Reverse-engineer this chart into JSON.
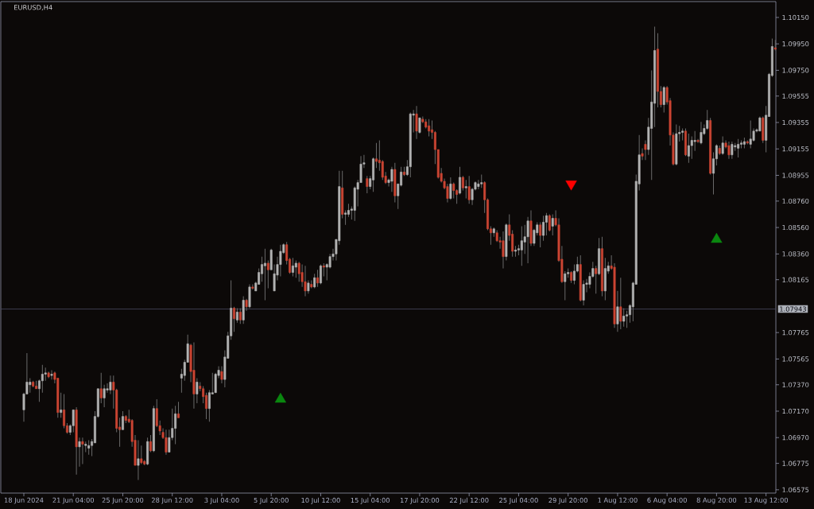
{
  "chart_data": {
    "type": "candlestick",
    "title": "EURUSD,H4",
    "categories": [
      "18 Jun 2024",
      null,
      null,
      null,
      null,
      null,
      null,
      null,
      null,
      null,
      null,
      null,
      null,
      null,
      null,
      null,
      "21 Jun 04:00",
      null,
      null,
      null,
      null,
      null,
      null,
      null,
      null,
      null,
      null,
      null,
      null,
      null,
      null,
      null,
      "25 Jun 20:00",
      null,
      null,
      null,
      null,
      null,
      null,
      null,
      null,
      null,
      null,
      null,
      null,
      null,
      null,
      null,
      "28 Jun 12:00",
      null,
      null,
      null,
      null,
      null,
      null,
      null,
      null,
      null,
      null,
      null,
      null,
      null,
      null,
      null,
      "3 Jul 04:00",
      null,
      null,
      null,
      null,
      null,
      null,
      null,
      null,
      null,
      null,
      null,
      null,
      null,
      null,
      null,
      "5 Jul 20:00",
      null,
      null,
      null,
      null,
      null,
      null,
      null,
      null,
      null,
      null,
      null,
      null,
      null,
      null,
      null,
      "10 Jul 12:00",
      null,
      null,
      null,
      null,
      null,
      null,
      null,
      null,
      null,
      null,
      null,
      null,
      null,
      null,
      null,
      "15 Jul 04:00",
      null,
      null,
      null,
      null,
      null,
      null,
      null,
      null,
      null,
      null,
      null,
      null,
      null,
      null,
      null,
      "17 Jul 20:00",
      null,
      null,
      null,
      null,
      null,
      null,
      null,
      null,
      null,
      null,
      null,
      null,
      null,
      null,
      null,
      "22 Jul 12:00",
      null,
      null,
      null,
      null,
      null,
      null,
      null,
      null,
      null,
      null,
      null,
      null,
      null,
      null,
      null,
      "25 Jul 04:00",
      null,
      null,
      null,
      null,
      null,
      null,
      null,
      null,
      null,
      null,
      null,
      null,
      null,
      null,
      null,
      "29 Jul 20:00",
      null,
      null,
      null,
      null,
      null,
      null,
      null,
      null,
      null,
      null,
      null,
      null,
      null,
      null,
      null,
      "1 Aug 12:00",
      null,
      null,
      null,
      null,
      null,
      null,
      null,
      null,
      null,
      null,
      null,
      null,
      null,
      null,
      null,
      "6 Aug 04:00",
      null,
      null,
      null,
      null,
      null,
      null,
      null,
      null,
      null,
      null,
      null,
      null,
      null,
      null,
      null,
      "8 Aug 20:00",
      null,
      null,
      null,
      null,
      null,
      null,
      null,
      null,
      null,
      null,
      null,
      null,
      null,
      null,
      null,
      "13 Aug 12:00",
      null,
      null,
      null
    ],
    "ohlc": [
      [
        1.0718,
        1.0731,
        1.0709,
        1.073
      ],
      [
        1.073,
        1.0761,
        1.073,
        1.0739
      ],
      [
        1.0737,
        1.0742,
        1.0731,
        1.0739
      ],
      [
        1.0739,
        1.074,
        1.0735,
        1.0736
      ],
      [
        1.0736,
        1.074,
        1.0734,
        1.0734
      ],
      [
        1.0734,
        1.0741,
        1.0724,
        1.074
      ],
      [
        1.074,
        1.0752,
        1.0731,
        1.0745
      ],
      [
        1.0745,
        1.075,
        1.074,
        1.0746
      ],
      [
        1.0746,
        1.0747,
        1.0742,
        1.0743
      ],
      [
        1.0744,
        1.0748,
        1.0741,
        1.0745
      ],
      [
        1.0746,
        1.0747,
        1.0738,
        1.0741
      ],
      [
        1.0742,
        1.0742,
        1.0712,
        1.0716
      ],
      [
        1.0716,
        1.0731,
        1.0712,
        1.0718
      ],
      [
        1.0718,
        1.073,
        1.0704,
        1.0706
      ],
      [
        1.0706,
        1.0708,
        1.07,
        1.0701
      ],
      [
        1.0701,
        1.0707,
        1.0699,
        1.0706
      ],
      [
        1.0706,
        1.0718,
        1.0701,
        1.0718
      ],
      [
        1.0718,
        1.072,
        1.0669,
        1.069
      ],
      [
        1.069,
        1.0697,
        1.0675,
        1.0694
      ],
      [
        1.0694,
        1.0697,
        1.0677,
        1.0692
      ],
      [
        1.0691,
        1.0694,
        1.0686,
        1.0692
      ],
      [
        1.0689,
        1.0695,
        1.0684,
        1.0691
      ],
      [
        1.0691,
        1.0696,
        1.0683,
        1.0694
      ],
      [
        1.0693,
        1.0717,
        1.0693,
        1.0713
      ],
      [
        1.0713,
        1.0734,
        1.0712,
        1.0734
      ],
      [
        1.0734,
        1.0746,
        1.0723,
        1.0727
      ],
      [
        1.0727,
        1.0737,
        1.072,
        1.0734
      ],
      [
        1.0733,
        1.0738,
        1.0731,
        1.0734
      ],
      [
        1.0733,
        1.0744,
        1.073,
        1.0739
      ],
      [
        1.0739,
        1.0744,
        1.0719,
        1.0733
      ],
      [
        1.0733,
        1.0734,
        1.0701,
        1.0704
      ],
      [
        1.0705,
        1.0712,
        1.069,
        1.0703
      ],
      [
        1.0703,
        1.0717,
        1.0703,
        1.0713
      ],
      [
        1.0713,
        1.0714,
        1.0708,
        1.071
      ],
      [
        1.0711,
        1.0718,
        1.0708,
        1.0709
      ],
      [
        1.071,
        1.0711,
        1.069,
        1.0694
      ],
      [
        1.0695,
        1.0699,
        1.0676,
        1.0676
      ],
      [
        1.0676,
        1.0695,
        1.0665,
        1.0681
      ],
      [
        1.0681,
        1.0691,
        1.0677,
        1.0678
      ],
      [
        1.0679,
        1.068,
        1.0676,
        1.0677
      ],
      [
        1.0677,
        1.0697,
        1.0676,
        1.0694
      ],
      [
        1.0694,
        1.0699,
        1.0686,
        1.0687
      ],
      [
        1.0687,
        1.0721,
        1.0686,
        1.0719
      ],
      [
        1.0719,
        1.0726,
        1.0705,
        1.0706
      ],
      [
        1.0706,
        1.071,
        1.0699,
        1.0702
      ],
      [
        1.0701,
        1.0704,
        1.0696,
        1.0697
      ],
      [
        1.0697,
        1.0703,
        1.0684,
        1.0686
      ],
      [
        1.0686,
        1.0703,
        1.0686,
        1.0697
      ],
      [
        1.0697,
        1.0719,
        1.0695,
        1.0704
      ],
      [
        1.0704,
        1.0721,
        1.0692,
        1.0715
      ],
      [
        1.0715,
        1.0724,
        1.0712,
        1.0712
      ],
      [
        1.0742,
        1.0749,
        1.0731,
        1.0745
      ],
      [
        1.0744,
        1.0756,
        1.074,
        1.0754
      ],
      [
        1.0754,
        1.0775,
        1.0754,
        1.0768
      ],
      [
        1.0767,
        1.0768,
        1.0739,
        1.0747
      ],
      [
        1.0748,
        1.0769,
        1.0719,
        1.073
      ],
      [
        1.073,
        1.0742,
        1.0723,
        1.0739
      ],
      [
        1.0736,
        1.0739,
        1.0732,
        1.0734
      ],
      [
        1.0734,
        1.0736,
        1.0723,
        1.0728
      ],
      [
        1.0729,
        1.0731,
        1.0711,
        1.0719
      ],
      [
        1.0719,
        1.0733,
        1.0709,
        1.0731
      ],
      [
        1.073,
        1.0746,
        1.073,
        1.0731
      ],
      [
        1.0731,
        1.0746,
        1.0731,
        1.0745
      ],
      [
        1.0744,
        1.0751,
        1.0742,
        1.0748
      ],
      [
        1.0747,
        1.0751,
        1.0738,
        1.0741
      ],
      [
        1.0741,
        1.0763,
        1.0735,
        1.0758
      ],
      [
        1.0757,
        1.0777,
        1.0757,
        1.0774
      ],
      [
        1.0774,
        1.0816,
        1.0771,
        1.0795
      ],
      [
        1.0795,
        1.0796,
        1.0777,
        1.0787
      ],
      [
        1.0786,
        1.0795,
        1.0784,
        1.0792
      ],
      [
        1.0792,
        1.0795,
        1.0783,
        1.0786
      ],
      [
        1.0786,
        1.0804,
        1.0783,
        1.0801
      ],
      [
        1.0801,
        1.0802,
        1.0793,
        1.0796
      ],
      [
        1.0796,
        1.0813,
        1.0795,
        1.0811
      ],
      [
        1.0811,
        1.0813,
        1.0809,
        1.081
      ],
      [
        1.0808,
        1.0815,
        1.0808,
        1.0814
      ],
      [
        1.0813,
        1.0825,
        1.0813,
        1.0822
      ],
      [
        1.0821,
        1.0834,
        1.0815,
        1.0828
      ],
      [
        1.0827,
        1.084,
        1.0801,
        1.0829
      ],
      [
        1.0829,
        1.0831,
        1.081,
        1.0824
      ],
      [
        1.0824,
        1.084,
        1.0824,
        1.0839
      ],
      [
        1.0808,
        1.0828,
        1.0808,
        1.0821
      ],
      [
        1.082,
        1.0834,
        1.0816,
        1.0828
      ],
      [
        1.0828,
        1.0843,
        1.0819,
        1.0838
      ],
      [
        1.0837,
        1.0844,
        1.0836,
        1.0843
      ],
      [
        1.0843,
        1.0845,
        1.0828,
        1.0831
      ],
      [
        1.0832,
        1.0833,
        1.0821,
        1.0822
      ],
      [
        1.0822,
        1.0833,
        1.0819,
        1.0827
      ],
      [
        1.0826,
        1.0831,
        1.0818,
        1.0829
      ],
      [
        1.0829,
        1.083,
        1.0815,
        1.0821
      ],
      [
        1.0822,
        1.0828,
        1.0811,
        1.0815
      ],
      [
        1.0815,
        1.0827,
        1.0804,
        1.0808
      ],
      [
        1.0808,
        1.0816,
        1.0806,
        1.0814
      ],
      [
        1.0813,
        1.0816,
        1.081,
        1.0811
      ],
      [
        1.0811,
        1.0821,
        1.081,
        1.0818
      ],
      [
        1.0818,
        1.0824,
        1.0811,
        1.0814
      ],
      [
        1.0814,
        1.0828,
        1.0813,
        1.0827
      ],
      [
        1.0827,
        1.0829,
        1.0819,
        1.0826
      ],
      [
        1.0826,
        1.0829,
        1.0816,
        1.0828
      ],
      [
        1.0826,
        1.0836,
        1.0825,
        1.0834
      ],
      [
        1.0834,
        1.084,
        1.0831,
        1.0836
      ],
      [
        1.0836,
        1.0847,
        1.0831,
        1.0847
      ],
      [
        1.0846,
        1.0899,
        1.0843,
        1.0887
      ],
      [
        1.0886,
        1.0899,
        1.0863,
        1.0866
      ],
      [
        1.0866,
        1.0869,
        1.0858,
        1.0867
      ],
      [
        1.0866,
        1.0874,
        1.0864,
        1.0869
      ],
      [
        1.0869,
        1.0872,
        1.0862,
        1.087
      ],
      [
        1.0869,
        1.0887,
        1.0861,
        1.0886
      ],
      [
        1.0885,
        1.0892,
        1.0872,
        1.089
      ],
      [
        1.089,
        1.091,
        1.089,
        1.0904
      ],
      [
        1.0904,
        1.0911,
        1.0901,
        1.0905
      ],
      [
        1.0893,
        1.0895,
        1.0882,
        1.0887
      ],
      [
        1.0887,
        1.0895,
        1.0885,
        1.0893
      ],
      [
        1.0892,
        1.0909,
        1.0883,
        1.0908
      ],
      [
        1.0908,
        1.092,
        1.0901,
        1.0906
      ],
      [
        1.0907,
        1.0922,
        1.0899,
        1.0905
      ],
      [
        1.0906,
        1.0907,
        1.0892,
        1.0894
      ],
      [
        1.0895,
        1.0898,
        1.0889,
        1.089
      ],
      [
        1.089,
        1.0893,
        1.0887,
        1.0892
      ],
      [
        1.0891,
        1.0902,
        1.0883,
        1.09
      ],
      [
        1.09,
        1.0905,
        1.0875,
        1.088
      ],
      [
        1.088,
        1.0889,
        1.087,
        1.0889
      ],
      [
        1.0888,
        1.0902,
        1.0887,
        1.0898
      ],
      [
        1.0898,
        1.0902,
        1.0895,
        1.0896
      ],
      [
        1.0896,
        1.0907,
        1.0895,
        1.0902
      ],
      [
        1.0902,
        1.0943,
        1.0894,
        1.0942
      ],
      [
        1.0941,
        1.0945,
        1.0928,
        1.0942
      ],
      [
        1.0942,
        1.0948,
        1.0923,
        1.0929
      ],
      [
        1.0928,
        1.0939,
        1.0927,
        1.0939
      ],
      [
        1.0938,
        1.094,
        1.0935,
        1.0936
      ],
      [
        1.0936,
        1.0938,
        1.0931,
        1.0932
      ],
      [
        1.0933,
        1.0938,
        1.0925,
        1.0929
      ],
      [
        1.093,
        1.0937,
        1.0923,
        1.0928
      ],
      [
        1.0928,
        1.0929,
        1.0904,
        1.0915
      ],
      [
        1.0915,
        1.0915,
        1.0893,
        1.0894
      ],
      [
        1.0897,
        1.0901,
        1.089,
        1.0891
      ],
      [
        1.0891,
        1.0893,
        1.0885,
        1.0886
      ],
      [
        1.0887,
        1.0889,
        1.0875,
        1.0878
      ],
      [
        1.0878,
        1.0894,
        1.0877,
        1.0889
      ],
      [
        1.0889,
        1.089,
        1.0878,
        1.0884
      ],
      [
        1.0884,
        1.0885,
        1.0874,
        1.0881
      ],
      [
        1.0882,
        1.0902,
        1.0881,
        1.0894
      ],
      [
        1.0894,
        1.0895,
        1.0884,
        1.0886
      ],
      [
        1.0886,
        1.0892,
        1.0878,
        1.0887
      ],
      [
        1.0887,
        1.0895,
        1.0874,
        1.0877
      ],
      [
        1.0877,
        1.0886,
        1.0873,
        1.0885
      ],
      [
        1.0885,
        1.0891,
        1.0884,
        1.089
      ],
      [
        1.0887,
        1.0892,
        1.0885,
        1.0889
      ],
      [
        1.0889,
        1.0896,
        1.0886,
        1.089
      ],
      [
        1.089,
        1.0891,
        1.0867,
        1.0877
      ],
      [
        1.0877,
        1.0878,
        1.0854,
        1.0855
      ],
      [
        1.0855,
        1.0857,
        1.0843,
        1.0852
      ],
      [
        1.0852,
        1.0856,
        1.0849,
        1.0855
      ],
      [
        1.0852,
        1.0854,
        1.0845,
        1.0846
      ],
      [
        1.0846,
        1.0849,
        1.084,
        1.0845
      ],
      [
        1.0846,
        1.0853,
        1.0825,
        1.0834
      ],
      [
        1.0834,
        1.0859,
        1.0831,
        1.0858
      ],
      [
        1.0858,
        1.0866,
        1.0846,
        1.085
      ],
      [
        1.0851,
        1.0854,
        1.0834,
        1.0838
      ],
      [
        1.0838,
        1.0842,
        1.0834,
        1.0839
      ],
      [
        1.0839,
        1.0843,
        1.0835,
        1.084
      ],
      [
        1.0839,
        1.0857,
        1.0827,
        1.0846
      ],
      [
        1.0845,
        1.0858,
        1.0836,
        1.0849
      ],
      [
        1.0849,
        1.0864,
        1.0829,
        1.0861
      ],
      [
        1.0861,
        1.0869,
        1.0842,
        1.0844
      ],
      [
        1.0844,
        1.0855,
        1.0842,
        1.0854
      ],
      [
        1.0852,
        1.086,
        1.085,
        1.0858
      ],
      [
        1.0858,
        1.086,
        1.0841,
        1.085
      ],
      [
        1.085,
        1.0865,
        1.0846,
        1.086
      ],
      [
        1.086,
        1.0867,
        1.085,
        1.0865
      ],
      [
        1.0865,
        1.0866,
        1.0853,
        1.0854
      ],
      [
        1.0857,
        1.0866,
        1.085,
        1.0863
      ],
      [
        1.0863,
        1.0869,
        1.0857,
        1.0858
      ],
      [
        1.0858,
        1.0863,
        1.083,
        1.0831
      ],
      [
        1.0832,
        1.0842,
        1.0814,
        1.0815
      ],
      [
        1.0815,
        1.0823,
        1.0801,
        1.0821
      ],
      [
        1.0821,
        1.0825,
        1.0818,
        1.0822
      ],
      [
        1.0822,
        1.0823,
        1.0814,
        1.0816
      ],
      [
        1.0816,
        1.0828,
        1.0813,
        1.0823
      ],
      [
        1.0823,
        1.0834,
        1.0822,
        1.0828
      ],
      [
        1.0828,
        1.0835,
        1.08,
        1.0801
      ],
      [
        1.0801,
        1.0816,
        1.0797,
        1.0813
      ],
      [
        1.0813,
        1.0817,
        1.0807,
        1.0814
      ],
      [
        1.0813,
        1.0822,
        1.081,
        1.0819
      ],
      [
        1.0819,
        1.083,
        1.0818,
        1.0825
      ],
      [
        1.0825,
        1.0827,
        1.0806,
        1.0821
      ],
      [
        1.0821,
        1.0848,
        1.082,
        1.084
      ],
      [
        1.084,
        1.0849,
        1.0804,
        1.0808
      ],
      [
        1.0808,
        1.0833,
        1.0801,
        1.0825
      ],
      [
        1.0823,
        1.083,
        1.0821,
        1.0827
      ],
      [
        1.0827,
        1.0835,
        1.0824,
        1.0825
      ],
      [
        1.0826,
        1.0829,
        1.078,
        1.0783
      ],
      [
        1.0783,
        1.0808,
        1.0777,
        1.0796
      ],
      [
        1.0796,
        1.0818,
        1.0779,
        1.0785
      ],
      [
        1.0785,
        1.0795,
        1.0781,
        1.0789
      ],
      [
        1.0789,
        1.0793,
        1.078,
        1.079
      ],
      [
        1.079,
        1.0798,
        1.0784,
        1.0797
      ],
      [
        1.0796,
        1.0815,
        1.0785,
        1.0814
      ],
      [
        1.0813,
        1.0896,
        1.0813,
        1.0891
      ],
      [
        1.0889,
        1.0926,
        1.0884,
        1.0911
      ],
      [
        1.0912,
        1.0916,
        1.0907,
        1.091
      ],
      [
        1.0919,
        1.0922,
        1.0907,
        1.0915
      ],
      [
        1.0915,
        1.0939,
        1.0911,
        1.0932
      ],
      [
        1.0931,
        1.0975,
        1.0892,
        1.0951
      ],
      [
        1.095,
        1.1008,
        1.0932,
        1.099
      ],
      [
        1.0991,
        1.1003,
        1.0947,
        1.0959
      ],
      [
        1.0959,
        1.0963,
        1.0947,
        1.0949
      ],
      [
        1.0949,
        1.0963,
        1.0943,
        1.0962
      ],
      [
        1.0962,
        1.0963,
        1.0949,
        1.0951
      ],
      [
        1.0952,
        1.0954,
        1.0918,
        1.0926
      ],
      [
        1.0926,
        1.0928,
        1.0903,
        1.0904
      ],
      [
        1.0904,
        1.0934,
        1.0903,
        1.0927
      ],
      [
        1.0927,
        1.0933,
        1.0921,
        1.0928
      ],
      [
        1.0928,
        1.0931,
        1.0922,
        1.0929
      ],
      [
        1.0929,
        1.0931,
        1.091,
        1.0911
      ],
      [
        1.091,
        1.0927,
        1.0905,
        1.0918
      ],
      [
        1.0918,
        1.0925,
        1.0908,
        1.0922
      ],
      [
        1.0921,
        1.0929,
        1.0914,
        1.0922
      ],
      [
        1.0922,
        1.0923,
        1.092,
        1.0921
      ],
      [
        1.092,
        1.0936,
        1.0919,
        1.0928
      ],
      [
        1.0927,
        1.0934,
        1.0926,
        1.0931
      ],
      [
        1.0931,
        1.0945,
        1.093,
        1.0937
      ],
      [
        1.0937,
        1.0939,
        1.0896,
        1.0897
      ],
      [
        1.0897,
        1.0913,
        1.0881,
        1.0908
      ],
      [
        1.0908,
        1.0919,
        1.0903,
        1.0918
      ],
      [
        1.0916,
        1.0918,
        1.0911,
        1.0912
      ],
      [
        1.0912,
        1.0925,
        1.0911,
        1.092
      ],
      [
        1.092,
        1.0922,
        1.0916,
        1.0917
      ],
      [
        1.0918,
        1.0921,
        1.0908,
        1.0911
      ],
      [
        1.0911,
        1.0921,
        1.0908,
        1.0919
      ],
      [
        1.0917,
        1.092,
        1.0914,
        1.0918
      ],
      [
        1.0916,
        1.0923,
        1.0909,
        1.0919
      ],
      [
        1.0919,
        1.0922,
        1.0916,
        1.092
      ],
      [
        1.0919,
        1.0924,
        1.0916,
        1.0921
      ],
      [
        1.0921,
        1.0922,
        1.0919,
        1.092
      ],
      [
        1.0919,
        1.0937,
        1.0916,
        1.0923
      ],
      [
        1.0922,
        1.0931,
        1.0921,
        1.0929
      ],
      [
        1.0929,
        1.0931,
        1.0928,
        1.093
      ],
      [
        1.0929,
        1.094,
        1.0929,
        1.0939
      ],
      [
        1.0939,
        1.094,
        1.092,
        1.0922
      ],
      [
        1.0922,
        1.0948,
        1.0913,
        1.0941
      ],
      [
        1.094,
        1.0973,
        1.094,
        1.0972
      ],
      [
        1.0971,
        1.0999,
        1.097,
        1.0993
      ],
      [
        1.0992,
        1.0998,
        1.099,
        1.0991
      ]
    ],
    "colors": [
      "#b3b3b3",
      "#b3b3b3",
      "#b3b3b3",
      "#cc4533",
      "#cc4533",
      "#b3b3b3",
      "#b3b3b3",
      "#b3b3b3",
      "#cc4533",
      "#b3b3b3",
      "#cc4533",
      "#cc4533",
      "#b3b3b3",
      "#cc4533",
      "#cc4533",
      "#b3b3b3",
      "#b3b3b3",
      "#cc4533",
      "#b3b3b3",
      "#cc4533",
      "#b3b3b3",
      "#b3b3b3",
      "#b3b3b3",
      "#b3b3b3",
      "#b3b3b3",
      "#cc4533",
      "#b3b3b3",
      "#b3b3b3",
      "#b3b3b3",
      "#cc4533",
      "#cc4533",
      "#cc4533",
      "#b3b3b3",
      "#cc4533",
      "#cc4533",
      "#cc4533",
      "#cc4533",
      "#b3b3b3",
      "#cc4533",
      "#cc4533",
      "#b3b3b3",
      "#cc4533",
      "#b3b3b3",
      "#cc4533",
      "#cc4533",
      "#cc4533",
      "#cc4533",
      "#b3b3b3",
      "#b3b3b3",
      "#b3b3b3",
      "#cc4533",
      "#b3b3b3",
      "#b3b3b3",
      "#b3b3b3",
      "#cc4533",
      "#cc4533",
      "#b3b3b3",
      "#cc4533",
      "#cc4533",
      "#cc4533",
      "#b3b3b3",
      "#b3b3b3",
      "#b3b3b3",
      "#b3b3b3",
      "#cc4533",
      "#b3b3b3",
      "#b3b3b3",
      "#b3b3b3",
      "#cc4533",
      "#b3b3b3",
      "#cc4533",
      "#b3b3b3",
      "#cc4533",
      "#b3b3b3",
      "#cc4533",
      "#b3b3b3",
      "#b3b3b3",
      "#b3b3b3",
      "#b3b3b3",
      "#cc4533",
      "#b3b3b3",
      "#b3b3b3",
      "#b3b3b3",
      "#b3b3b3",
      "#b3b3b3",
      "#cc4533",
      "#cc4533",
      "#b3b3b3",
      "#b3b3b3",
      "#cc4533",
      "#cc4533",
      "#cc4533",
      "#b3b3b3",
      "#cc4533",
      "#b3b3b3",
      "#cc4533",
      "#b3b3b3",
      "#cc4533",
      "#b3b3b3",
      "#b3b3b3",
      "#b3b3b3",
      "#b3b3b3",
      "#b3b3b3",
      "#cc4533",
      "#b3b3b3",
      "#b3b3b3",
      "#b3b3b3",
      "#b3b3b3",
      "#b3b3b3",
      "#b3b3b3",
      "#b3b3b3",
      "#cc4533",
      "#b3b3b3",
      "#b3b3b3",
      "#cc4533",
      "#cc4533",
      "#cc4533",
      "#cc4533",
      "#b3b3b3",
      "#b3b3b3",
      "#cc4533",
      "#b3b3b3",
      "#b3b3b3",
      "#cc4533",
      "#b3b3b3",
      "#b3b3b3",
      "#b3b3b3",
      "#cc4533",
      "#b3b3b3",
      "#cc4533",
      "#cc4533",
      "#cc4533",
      "#cc4533",
      "#cc4533",
      "#cc4533",
      "#cc4533",
      "#cc4533",
      "#cc4533",
      "#b3b3b3",
      "#cc4533",
      "#cc4533",
      "#b3b3b3",
      "#cc4533",
      "#b3b3b3",
      "#cc4533",
      "#b3b3b3",
      "#b3b3b3",
      "#b3b3b3",
      "#b3b3b3",
      "#cc4533",
      "#cc4533",
      "#cc4533",
      "#b3b3b3",
      "#cc4533",
      "#cc4533",
      "#cc4533",
      "#b3b3b3",
      "#cc4533",
      "#cc4533",
      "#b3b3b3",
      "#b3b3b3",
      "#b3b3b3",
      "#b3b3b3",
      "#b3b3b3",
      "#cc4533",
      "#b3b3b3",
      "#b3b3b3",
      "#cc4533",
      "#b3b3b3",
      "#b3b3b3",
      "#cc4533",
      "#b3b3b3",
      "#cc4533",
      "#cc4533",
      "#cc4533",
      "#b3b3b3",
      "#b3b3b3",
      "#cc4533",
      "#b3b3b3",
      "#b3b3b3",
      "#cc4533",
      "#b3b3b3",
      "#b3b3b3",
      "#b3b3b3",
      "#b3b3b3",
      "#cc4533",
      "#b3b3b3",
      "#cc4533",
      "#b3b3b3",
      "#b3b3b3",
      "#cc4533",
      "#cc4533",
      "#b3b3b3",
      "#cc4533",
      "#b3b3b3",
      "#b3b3b3",
      "#b3b3b3",
      "#b3b3b3",
      "#b3b3b3",
      "#b3b3b3",
      "#cc4533",
      "#cc4533",
      "#b3b3b3",
      "#b3b3b3",
      "#b3b3b3",
      "#cc4533",
      "#cc4533",
      "#b3b3b3",
      "#cc4533",
      "#cc4533",
      "#cc4533",
      "#b3b3b3",
      "#b3b3b3",
      "#b3b3b3",
      "#cc4533",
      "#b3b3b3",
      "#b3b3b3",
      "#b3b3b3",
      "#cc4533",
      "#b3b3b3",
      "#b3b3b3",
      "#b3b3b3",
      "#cc4533",
      "#b3b3b3",
      "#b3b3b3",
      "#cc4533",
      "#b3b3b3",
      "#cc4533",
      "#cc4533",
      "#b3b3b3",
      "#b3b3b3",
      "#b3b3b3",
      "#b3b3b3",
      "#b3b3b3",
      "#cc4533",
      "#b3b3b3",
      "#b3b3b3",
      "#b3b3b3",
      "#b3b3b3",
      "#cc4533",
      "#b3b3b3",
      "#b3b3b3",
      "#b3b3b3",
      "#cc4533"
    ],
    "ylim": [
      1.0655,
      1.1027
    ],
    "yticks": [
      {
        "value": 1.06575,
        "label": "1.06575"
      },
      {
        "value": 1.06775,
        "label": "1.06775"
      },
      {
        "value": 1.0697,
        "label": "1.06970"
      },
      {
        "value": 1.0717,
        "label": "1.07170"
      },
      {
        "value": 1.0737,
        "label": "1.07370"
      },
      {
        "value": 1.07565,
        "label": "1.07565"
      },
      {
        "value": 1.07765,
        "label": "1.07765"
      },
      {
        "value": 1.08165,
        "label": "1.08165"
      },
      {
        "value": 1.0836,
        "label": "1.08360"
      },
      {
        "value": 1.0856,
        "label": "1.08560"
      },
      {
        "value": 1.0876,
        "label": "1.08760"
      },
      {
        "value": 1.08955,
        "label": "1.08955"
      },
      {
        "value": 1.09155,
        "label": "1.09155"
      },
      {
        "value": 1.09355,
        "label": "1.09355"
      },
      {
        "value": 1.09555,
        "label": "1.09555"
      },
      {
        "value": 1.0975,
        "label": "1.09750"
      },
      {
        "value": 1.0995,
        "label": "1.09950"
      },
      {
        "value": 1.1015,
        "label": "1.10150"
      }
    ],
    "ref_lines": [
      {
        "axis": "y",
        "value": 1.07943,
        "label": "1.07943",
        "color": "#4a4a62"
      }
    ],
    "series": [
      {
        "type": "scatter",
        "color": "#0a870f",
        "marker": "triangle",
        "values": [
          null,
          null,
          null,
          null,
          null,
          null,
          null,
          null,
          null,
          null,
          null,
          null,
          null,
          null,
          null,
          null,
          null,
          null,
          null,
          null,
          null,
          null,
          null,
          null,
          null,
          null,
          null,
          null,
          null,
          null,
          null,
          null,
          null,
          null,
          null,
          null,
          null,
          null,
          null,
          null,
          null,
          null,
          null,
          null,
          null,
          null,
          null,
          null,
          null,
          null,
          null,
          null,
          null,
          null,
          null,
          null,
          null,
          null,
          null,
          null,
          null,
          null,
          null,
          null,
          null,
          null,
          null,
          null,
          null,
          null,
          null,
          null,
          null,
          null,
          null,
          null,
          null,
          null,
          null,
          null,
          null,
          null,
          null,
          1.0726,
          null,
          null,
          null,
          null,
          null,
          null,
          null,
          null,
          null,
          null,
          null,
          null,
          null,
          null,
          null,
          null,
          null,
          null,
          null,
          null,
          null,
          null,
          null,
          null,
          null,
          null,
          null,
          null,
          null,
          null,
          null,
          null,
          null,
          null,
          null,
          null,
          null,
          null,
          null,
          null,
          null,
          null,
          null,
          null,
          null,
          null,
          null,
          null,
          null,
          null,
          null,
          null,
          null,
          null,
          null,
          null,
          null,
          null,
          null,
          null,
          null,
          null,
          null,
          null,
          null,
          null,
          null,
          null,
          null,
          null,
          null,
          null,
          null,
          null,
          null,
          null,
          null,
          null,
          null,
          null,
          null,
          null,
          null,
          null,
          null,
          null,
          null,
          null,
          null,
          null,
          null,
          null,
          null,
          null,
          null,
          null,
          null,
          null,
          null,
          null,
          null,
          null,
          null,
          null,
          null,
          null,
          null,
          null,
          null,
          null,
          null,
          null,
          null,
          null,
          null,
          null,
          null,
          null,
          null,
          null,
          null,
          null,
          null,
          null,
          null,
          null,
          null,
          null,
          null,
          null,
          null,
          null,
          null,
          null,
          null,
          null,
          null,
          null,
          null,
          null,
          1.0847,
          null,
          null,
          null,
          null,
          null,
          null,
          null,
          null,
          null,
          null,
          null,
          null,
          null,
          null,
          null,
          null,
          null,
          null,
          null
        ]
      },
      {
        "type": "scatter",
        "color": "#ff0000",
        "marker": "triangle",
        "values": [
          null,
          null,
          null,
          null,
          null,
          null,
          null,
          null,
          null,
          null,
          null,
          null,
          null,
          null,
          null,
          null,
          null,
          null,
          null,
          null,
          null,
          null,
          null,
          null,
          null,
          null,
          null,
          null,
          null,
          null,
          null,
          null,
          null,
          null,
          null,
          null,
          null,
          null,
          null,
          null,
          null,
          null,
          null,
          null,
          null,
          null,
          null,
          null,
          null,
          null,
          null,
          null,
          null,
          null,
          null,
          null,
          null,
          null,
          null,
          null,
          null,
          null,
          null,
          null,
          null,
          null,
          null,
          null,
          null,
          null,
          null,
          null,
          null,
          null,
          null,
          null,
          null,
          null,
          null,
          null,
          null,
          null,
          null,
          null,
          null,
          null,
          null,
          null,
          null,
          null,
          null,
          null,
          null,
          null,
          null,
          null,
          null,
          null,
          null,
          null,
          null,
          null,
          null,
          null,
          null,
          null,
          null,
          null,
          null,
          null,
          null,
          null,
          null,
          null,
          null,
          null,
          null,
          null,
          null,
          null,
          null,
          null,
          null,
          null,
          null,
          null,
          null,
          null,
          null,
          null,
          null,
          null,
          null,
          null,
          null,
          null,
          null,
          null,
          null,
          null,
          null,
          null,
          null,
          null,
          null,
          null,
          null,
          null,
          null,
          null,
          null,
          null,
          null,
          null,
          null,
          null,
          null,
          null,
          null,
          null,
          null,
          null,
          null,
          null,
          null,
          null,
          null,
          null,
          null,
          null,
          null,
          null,
          null,
          null,
          null,
          null,
          null,
          1.0889,
          null,
          null,
          null,
          null,
          null,
          null,
          null,
          null,
          null,
          null,
          null,
          null,
          null,
          null,
          null,
          null,
          null,
          null,
          null,
          null,
          null,
          null,
          null,
          null,
          null,
          null,
          null,
          null,
          null,
          null,
          null,
          null,
          null,
          null,
          null,
          null,
          null,
          null,
          null,
          null,
          null,
          null,
          null,
          null,
          null,
          null,
          null,
          null,
          null,
          null,
          null,
          null,
          null,
          null,
          null,
          null,
          null,
          null,
          null,
          null,
          null,
          null,
          null,
          null,
          null,
          null
        ]
      }
    ]
  }
}
